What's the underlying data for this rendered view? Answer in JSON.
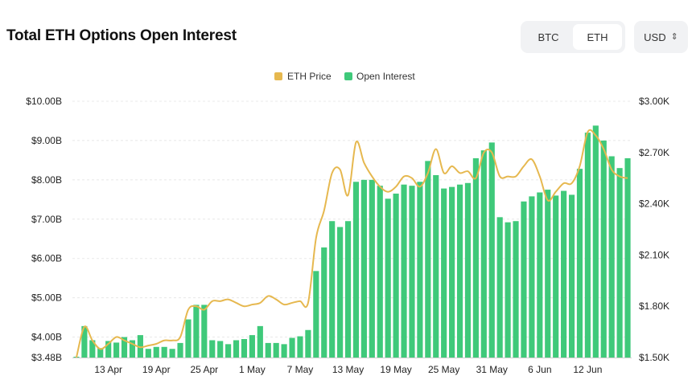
{
  "header": {
    "title": "Total ETH Options Open Interest",
    "toggle": [
      {
        "label": "BTC",
        "active": false
      },
      {
        "label": "ETH",
        "active": true
      }
    ],
    "currency": "USD"
  },
  "colors": {
    "bar": "#3fc97a",
    "line": "#e6b84f",
    "grid": "#e8e8e8"
  },
  "chart_data": {
    "type": "bar",
    "legend": [
      {
        "name": "ETH Price",
        "color": "#e6b84f"
      },
      {
        "name": "Open Interest",
        "color": "#3fc97a"
      }
    ],
    "legend_position": "top-center",
    "left_axis": {
      "ticks": [
        "$3.48B",
        "$4.00B",
        "$5.00B",
        "$6.00B",
        "$7.00B",
        "$8.00B",
        "$9.00B",
        "$10.00B"
      ],
      "tick_values": [
        3.48,
        4,
        5,
        6,
        7,
        8,
        9,
        10
      ],
      "range": [
        3.48,
        10
      ]
    },
    "right_axis": {
      "ticks": [
        "$1.50K",
        "$1.80K",
        "$2.10K",
        "$2.40K",
        "$2.70K",
        "$3.00K"
      ],
      "tick_values": [
        1.5,
        1.8,
        2.1,
        2.4,
        2.7,
        3.0
      ],
      "range": [
        1.5,
        3.0
      ]
    },
    "x_ticks": [
      {
        "label": "13 Apr",
        "index": 4
      },
      {
        "label": "19 Apr",
        "index": 10
      },
      {
        "label": "25 Apr",
        "index": 16
      },
      {
        "label": "1 May",
        "index": 22
      },
      {
        "label": "7 May",
        "index": 28
      },
      {
        "label": "13 May",
        "index": 34
      },
      {
        "label": "19 May",
        "index": 40
      },
      {
        "label": "25 May",
        "index": 46
      },
      {
        "label": "31 May",
        "index": 52
      },
      {
        "label": "6 Jun",
        "index": 58
      },
      {
        "label": "12 Jun",
        "index": 64
      }
    ],
    "grid": true,
    "open_interest": [
      3.5,
      4.28,
      3.92,
      3.72,
      3.9,
      3.86,
      4.0,
      3.92,
      4.05,
      3.7,
      3.75,
      3.75,
      3.7,
      3.85,
      4.45,
      4.82,
      4.82,
      3.92,
      3.9,
      3.82,
      3.92,
      3.95,
      4.05,
      4.28,
      3.85,
      3.85,
      3.82,
      3.98,
      4.02,
      4.18,
      5.68,
      6.28,
      6.95,
      6.8,
      6.95,
      7.95,
      8.0,
      8.0,
      7.85,
      7.52,
      7.65,
      7.88,
      7.85,
      7.95,
      8.48,
      8.12,
      7.78,
      7.82,
      7.88,
      7.92,
      8.55,
      8.75,
      8.95,
      7.05,
      6.92,
      6.95,
      7.45,
      7.58,
      7.68,
      7.75,
      7.6,
      7.72,
      7.62,
      8.28,
      9.2,
      9.38,
      9.0,
      8.6,
      8.3,
      8.55
    ],
    "eth_price": [
      1.5,
      1.68,
      1.6,
      1.55,
      1.58,
      1.62,
      1.6,
      1.58,
      1.56,
      1.57,
      1.58,
      1.6,
      1.6,
      1.62,
      1.78,
      1.8,
      1.78,
      1.83,
      1.83,
      1.84,
      1.82,
      1.8,
      1.81,
      1.82,
      1.86,
      1.84,
      1.81,
      1.82,
      1.83,
      1.82,
      2.2,
      2.36,
      2.58,
      2.6,
      2.45,
      2.76,
      2.64,
      2.56,
      2.5,
      2.47,
      2.5,
      2.56,
      2.55,
      2.5,
      2.58,
      2.72,
      2.58,
      2.62,
      2.58,
      2.59,
      2.55,
      2.7,
      2.7,
      2.56,
      2.56,
      2.56,
      2.62,
      2.66,
      2.56,
      2.42,
      2.47,
      2.52,
      2.52,
      2.62,
      2.82,
      2.8,
      2.72,
      2.6,
      2.56,
      2.55
    ]
  }
}
